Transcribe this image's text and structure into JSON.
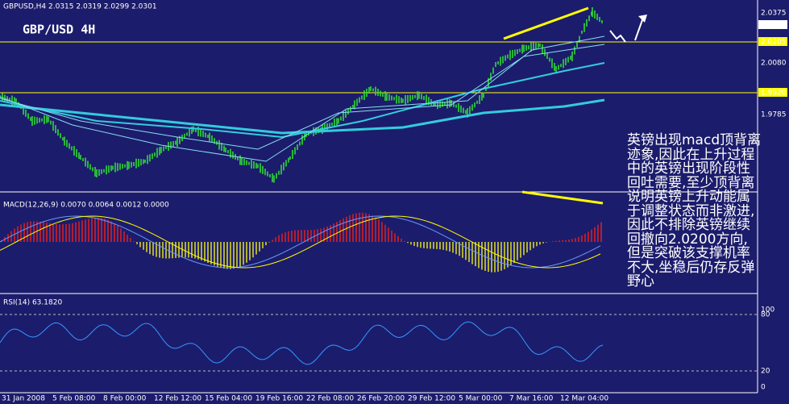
{
  "header": {
    "symbol_line": "GBPUSD,H4  2.0315 2.0319 2.0299 2.0301",
    "title": "GBP/USD 4H"
  },
  "price_axis": [
    "2.0375",
    "2.0301",
    "2.0205",
    "2.0080",
    "1.9920",
    "1.9785"
  ],
  "macd": {
    "label": "MACD(12,26,9) 0.0070 0.0064 0.0012 0.0000"
  },
  "rsi": {
    "label": "RSI(14) 63.1820",
    "axis": [
      "100",
      "80",
      "20",
      "0"
    ]
  },
  "time_axis": [
    "31 Jan 2008",
    "5 Feb 08:00",
    "8 Feb 00:00",
    "12 Feb 12:00",
    "15 Feb 04:00",
    "19 Feb 16:00",
    "22 Feb 08:00",
    "26 Feb 20:00",
    "29 Feb 12:00",
    "5 Mar 00:00",
    "7 Mar 16:00",
    "12 Mar 04:00"
  ],
  "annotation": [
    "英镑出现macd顶背离",
    "迹象,因此在上升过程",
    "中的英镑出现阶段性",
    "回吐需要,至少顶背离",
    "说明英镑上升动能属",
    "于调整状态而非激进,",
    "因此不排除英镑继续",
    "回撤向2.0200方向,",
    "但是突破该支撑机率",
    "不大,坐稳后仍存反弹",
    "野心"
  ]
}
